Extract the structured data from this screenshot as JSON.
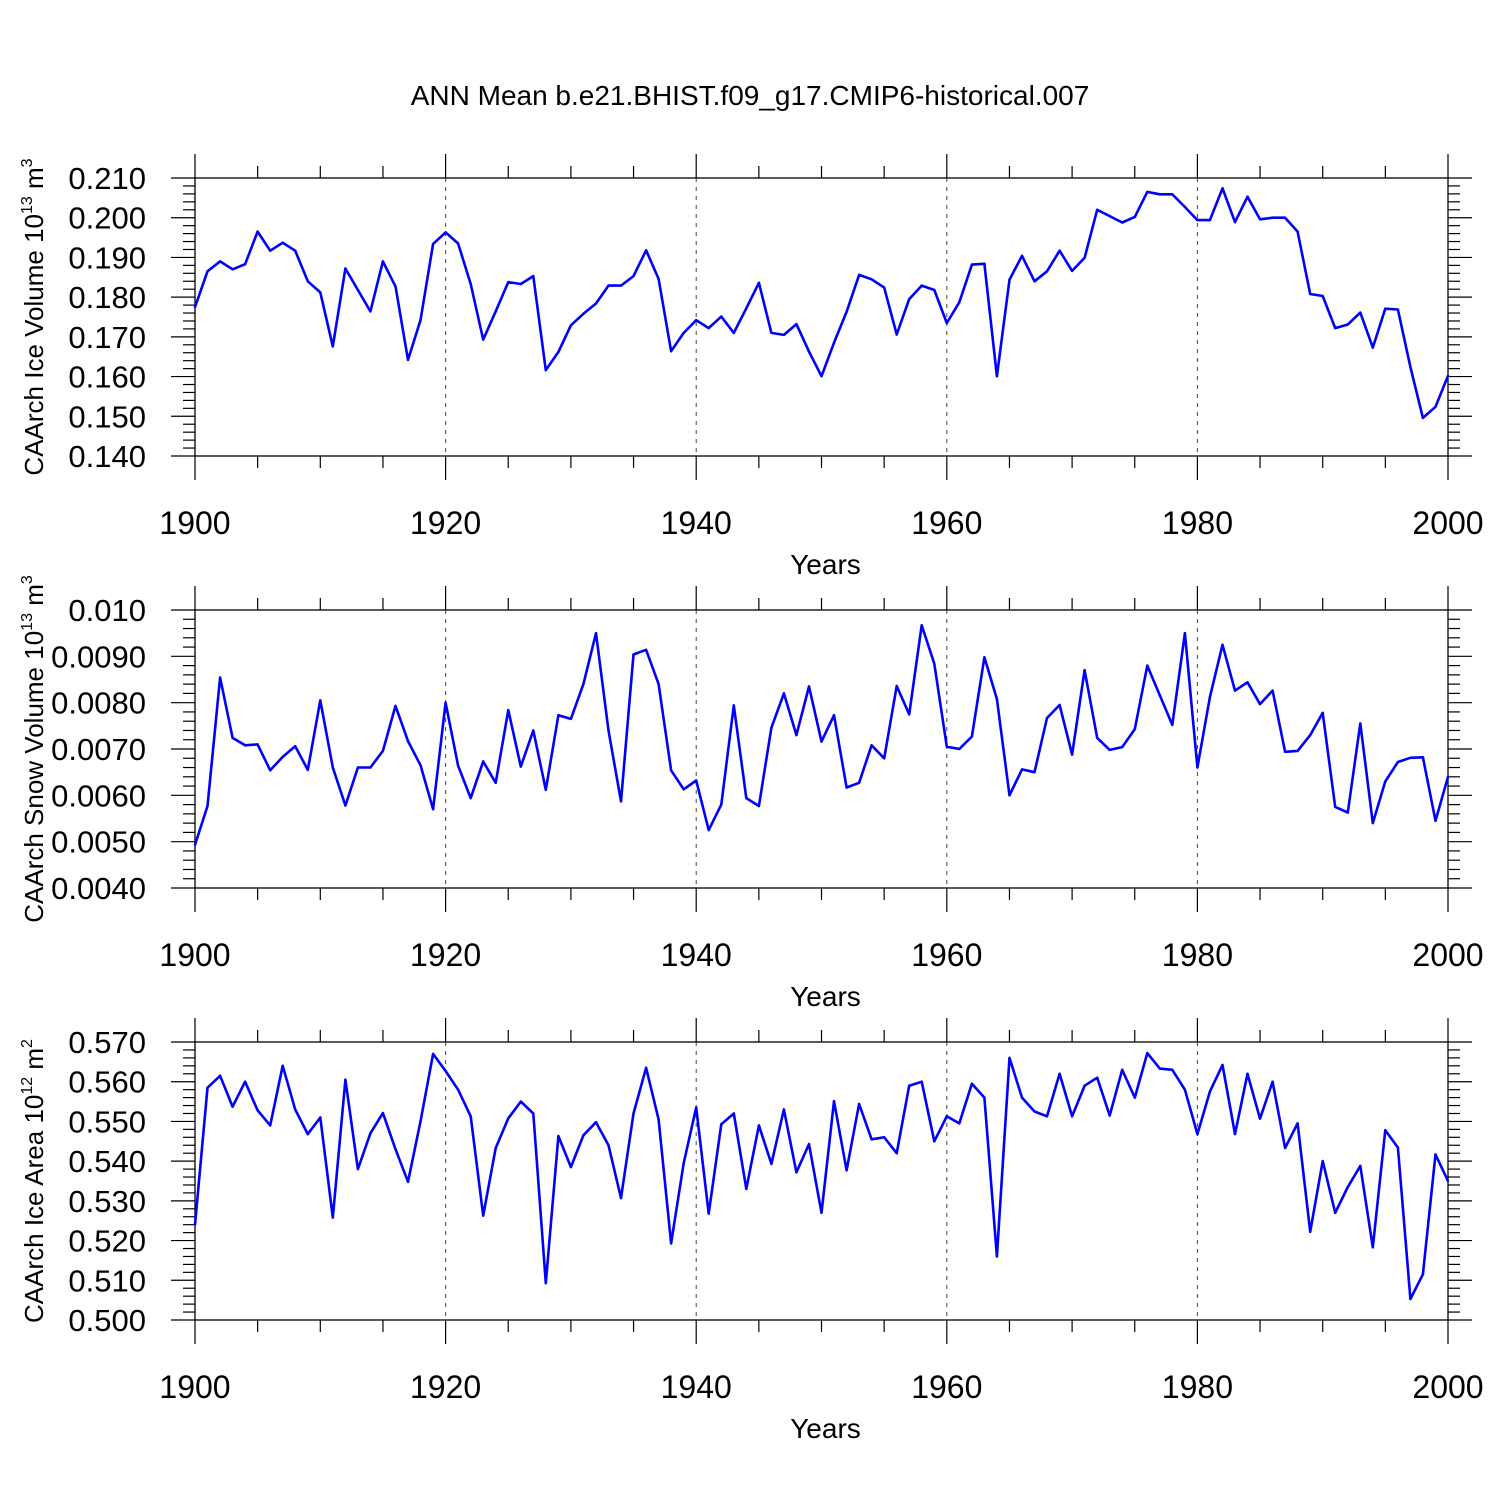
{
  "title": "ANN Mean b.e21.BHIST.f09_g17.CMIP6-historical.007",
  "colors": {
    "line": "#0000ff",
    "axes": "#000000",
    "grid": "#444444"
  },
  "chart_data": [
    {
      "type": "line",
      "ylabel": {
        "text": "CAArch Ice Volume 10",
        "sup": "13",
        "unit": " m",
        "unit_sup": "3"
      },
      "xlabel": "Years",
      "xlim": [
        1900,
        2000
      ],
      "ylim": [
        0.14,
        0.21
      ],
      "xticks": [
        "1900",
        "1920",
        "1940",
        "1960",
        "1980",
        "2000"
      ],
      "yticks": [
        "0.140",
        "0.150",
        "0.160",
        "0.170",
        "0.180",
        "0.190",
        "0.200",
        "0.210"
      ],
      "grid": "dashed vertical at major x ticks",
      "x_start": 1900,
      "values": [
        0.1775,
        0.1865,
        0.189,
        0.187,
        0.1883,
        0.1965,
        0.1917,
        0.1937,
        0.1917,
        0.184,
        0.1812,
        0.1676,
        0.1872,
        0.1818,
        0.1764,
        0.189,
        0.1827,
        0.1642,
        0.1742,
        0.1934,
        0.1963,
        0.1935,
        0.1833,
        0.1693,
        0.1764,
        0.1838,
        0.1833,
        0.1853,
        0.1616,
        0.1662,
        0.1729,
        0.1758,
        0.1784,
        0.1829,
        0.1829,
        0.1853,
        0.1918,
        0.1846,
        0.1664,
        0.171,
        0.1742,
        0.1722,
        0.1751,
        0.171,
        0.1772,
        0.1836,
        0.171,
        0.1705,
        0.1732,
        0.1663,
        0.1601,
        0.1685,
        0.1763,
        0.1856,
        0.1845,
        0.1824,
        0.1706,
        0.1795,
        0.1829,
        0.1818,
        0.1735,
        0.1787,
        0.1882,
        0.1884,
        0.1601,
        0.1844,
        0.1904,
        0.184,
        0.1865,
        0.1917,
        0.1866,
        0.1899,
        0.202,
        0.2004,
        0.1988,
        0.2002,
        0.2065,
        0.2059,
        0.2059,
        0.2027,
        0.1994,
        0.1994,
        0.2074,
        0.1989,
        0.2053,
        0.1996,
        0.2,
        0.2,
        0.1965,
        0.1808,
        0.1803,
        0.1722,
        0.1731,
        0.1761,
        0.1673,
        0.1771,
        0.1769,
        0.1624,
        0.1496,
        0.1524,
        0.1602
      ]
    },
    {
      "type": "line",
      "ylabel": {
        "text": "CAArch Snow Volume 10",
        "sup": "13",
        "unit": " m",
        "unit_sup": "3"
      },
      "xlabel": "Years",
      "xlim": [
        1900,
        2000
      ],
      "ylim": [
        0.004,
        0.01
      ],
      "xticks": [
        "1900",
        "1920",
        "1940",
        "1960",
        "1980",
        "2000"
      ],
      "yticks": [
        "0.0040",
        "0.0050",
        "0.0060",
        "0.0070",
        "0.0080",
        "0.0090",
        "0.010"
      ],
      "grid": "dashed vertical at major x ticks",
      "x_start": 1900,
      "values": [
        0.00493,
        0.00577,
        0.00854,
        0.00724,
        0.00708,
        0.0071,
        0.00654,
        0.00683,
        0.00706,
        0.00655,
        0.00805,
        0.0066,
        0.00578,
        0.0066,
        0.0066,
        0.00696,
        0.00793,
        0.00717,
        0.00665,
        0.0057,
        0.008,
        0.00664,
        0.00594,
        0.00673,
        0.00627,
        0.00784,
        0.00662,
        0.0074,
        0.00612,
        0.00773,
        0.00765,
        0.0084,
        0.0095,
        0.0074,
        0.00587,
        0.00904,
        0.00914,
        0.0084,
        0.00654,
        0.00613,
        0.00632,
        0.00525,
        0.0058,
        0.00794,
        0.00594,
        0.00577,
        0.00746,
        0.0082,
        0.0073,
        0.00835,
        0.00716,
        0.00773,
        0.00617,
        0.00627,
        0.00708,
        0.0068,
        0.00836,
        0.00775,
        0.00967,
        0.00884,
        0.00705,
        0.007,
        0.00727,
        0.00898,
        0.00808,
        0.006,
        0.00656,
        0.0065,
        0.00767,
        0.00795,
        0.00688,
        0.0087,
        0.00724,
        0.00698,
        0.00704,
        0.00743,
        0.0088,
        0.00816,
        0.00752,
        0.0095,
        0.0066,
        0.00812,
        0.00925,
        0.00826,
        0.00844,
        0.00797,
        0.00826,
        0.00694,
        0.00696,
        0.0073,
        0.00778,
        0.00575,
        0.00563,
        0.00755,
        0.0054,
        0.0063,
        0.00672,
        0.00681,
        0.00682,
        0.00545,
        0.0064
      ]
    },
    {
      "type": "line",
      "ylabel": {
        "text": "CAArch Ice Area 10",
        "sup": "12",
        "unit": " m",
        "unit_sup": "2"
      },
      "xlabel": "Years",
      "xlim": [
        1900,
        2000
      ],
      "ylim": [
        0.5,
        0.57
      ],
      "xticks": [
        "1900",
        "1920",
        "1940",
        "1960",
        "1980",
        "2000"
      ],
      "yticks": [
        "0.500",
        "0.510",
        "0.520",
        "0.530",
        "0.540",
        "0.550",
        "0.560",
        "0.570"
      ],
      "grid": "dashed vertical at major x ticks",
      "x_start": 1900,
      "values": [
        0.524,
        0.5585,
        0.5615,
        0.5537,
        0.56,
        0.5528,
        0.549,
        0.564,
        0.553,
        0.5468,
        0.551,
        0.5258,
        0.5605,
        0.538,
        0.547,
        0.5521,
        0.543,
        0.5348,
        0.55,
        0.567,
        0.5627,
        0.558,
        0.5513,
        0.5263,
        0.5433,
        0.5508,
        0.555,
        0.552,
        0.5093,
        0.5463,
        0.5385,
        0.5465,
        0.5498,
        0.544,
        0.5307,
        0.552,
        0.5635,
        0.5505,
        0.5193,
        0.5395,
        0.5535,
        0.5268,
        0.5493,
        0.552,
        0.533,
        0.549,
        0.5393,
        0.553,
        0.5372,
        0.5443,
        0.527,
        0.5551,
        0.5377,
        0.5544,
        0.5455,
        0.546,
        0.542,
        0.559,
        0.56,
        0.545,
        0.5513,
        0.5495,
        0.5595,
        0.556,
        0.516,
        0.566,
        0.556,
        0.5525,
        0.5513,
        0.562,
        0.5513,
        0.559,
        0.561,
        0.5515,
        0.563,
        0.556,
        0.5672,
        0.5633,
        0.563,
        0.558,
        0.5468,
        0.5575,
        0.5642,
        0.5468,
        0.562,
        0.5507,
        0.56,
        0.5433,
        0.5495,
        0.5222,
        0.54,
        0.527,
        0.5335,
        0.5388,
        0.5183,
        0.5478,
        0.5434,
        0.5053,
        0.5115,
        0.5417,
        0.535
      ]
    }
  ]
}
